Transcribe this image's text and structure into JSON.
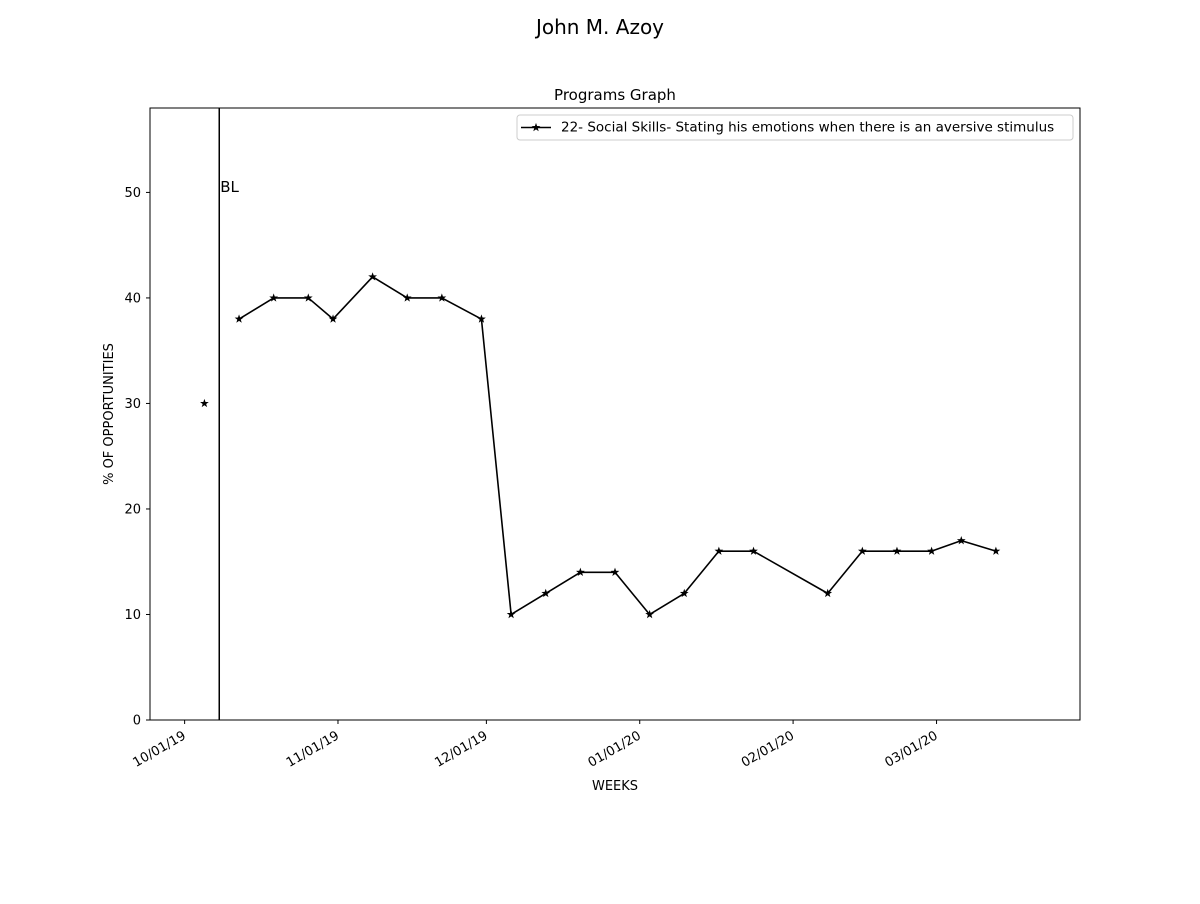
{
  "page_title": "John M.  Azoy",
  "chart_data": {
    "type": "line",
    "title": "Programs Graph",
    "xlabel": "WEEKS",
    "ylabel": "% OF OPPORTUNITIES",
    "x_axis_type": "date",
    "xlim": [
      "2019-09-24",
      "2020-03-30"
    ],
    "ylim": [
      0,
      58
    ],
    "x_ticks": [
      {
        "date": "2019-10-01",
        "label": "10/01/19"
      },
      {
        "date": "2019-11-01",
        "label": "11/01/19"
      },
      {
        "date": "2019-12-01",
        "label": "12/01/19"
      },
      {
        "date": "2020-01-01",
        "label": "01/01/20"
      },
      {
        "date": "2020-02-01",
        "label": "02/01/20"
      },
      {
        "date": "2020-03-01",
        "label": "03/01/20"
      }
    ],
    "y_ticks": [
      0,
      10,
      20,
      30,
      40,
      50
    ],
    "grid": false,
    "legend_position": "top-right",
    "phase_line": {
      "date": "2019-10-08",
      "label": "BL"
    },
    "series": [
      {
        "name": "22- Social Skills- Stating his emotions when there is an aversive stimulus",
        "color": "#000000",
        "marker": "star",
        "segments": [
          [
            {
              "x": "2019-10-05",
              "y": 30
            }
          ],
          [
            {
              "x": "2019-10-12",
              "y": 38
            },
            {
              "x": "2019-10-19",
              "y": 40
            },
            {
              "x": "2019-10-26",
              "y": 40
            },
            {
              "x": "2019-11-00",
              "y": 38
            },
            {
              "x": "2019-11-08",
              "y": 42
            },
            {
              "x": "2019-11-15",
              "y": 40
            },
            {
              "x": "2019-11-22",
              "y": 40
            },
            {
              "x": "2019-11-30",
              "y": 38
            },
            {
              "x": "2019-12-06",
              "y": 10
            },
            {
              "x": "2019-12-13",
              "y": 12
            },
            {
              "x": "2019-12-20",
              "y": 14
            },
            {
              "x": "2019-12-27",
              "y": 14
            },
            {
              "x": "2020-01-03",
              "y": 10
            },
            {
              "x": "2020-01-10",
              "y": 12
            },
            {
              "x": "2020-01-17",
              "y": 16
            },
            {
              "x": "2020-01-24",
              "y": 16
            },
            {
              "x": "2020-02-08",
              "y": 12
            },
            {
              "x": "2020-02-15",
              "y": 16
            },
            {
              "x": "2020-02-22",
              "y": 16
            },
            {
              "x": "2020-02-29",
              "y": 16
            },
            {
              "x": "2020-03-06",
              "y": 17
            },
            {
              "x": "2020-03-13",
              "y": 16
            }
          ]
        ]
      }
    ]
  }
}
